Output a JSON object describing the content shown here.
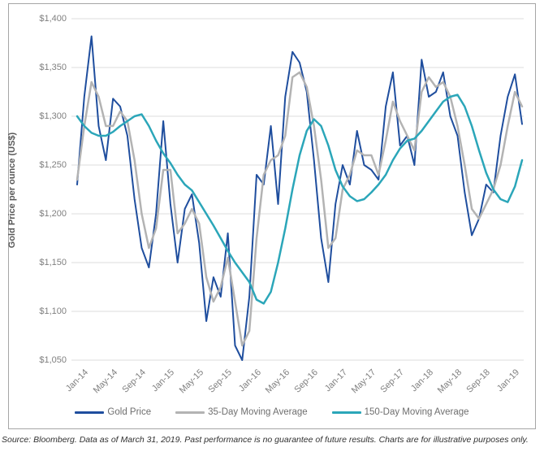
{
  "figure": {
    "source_text": "Source: Bloomberg. Data as of March 31, 2019. Past performance is no guarantee of future results. Charts are for illustrative purposes only."
  },
  "chart_data": {
    "type": "line",
    "title": "",
    "xlabel": "",
    "ylabel": "Gold Price per ounce (US$)",
    "ylim": [
      1050,
      1400
    ],
    "y_tick_step": 50,
    "y_tick_labels": [
      "$1,050",
      "$1,100",
      "$1,150",
      "$1,200",
      "$1,250",
      "$1,300",
      "$1,350",
      "$1,400"
    ],
    "x_tick_labels": [
      "Jan-14",
      "May-14",
      "Sep-14",
      "Jan-15",
      "May-15",
      "Sep-15",
      "Jan-16",
      "May-16",
      "Sep-16",
      "Jan-17",
      "May-17",
      "Sep-17",
      "Jan-18",
      "May-18",
      "Sep-18",
      "Jan-19"
    ],
    "x_start": "Jan-14",
    "x_end": "Mar-19",
    "x_frequency": "monthly",
    "x_tick_interval_months": 4,
    "grid": "horizontal",
    "legend_position": "bottom",
    "colors": {
      "grid": "#dcdcdc",
      "tick_text": "#7f7f7f",
      "axis_title_text": "#595959",
      "figure_border": "#a6a6a6"
    },
    "series": [
      {
        "name": "Gold Price",
        "color": "#1f4e9e",
        "stroke_width": 2,
        "values": [
          1230,
          1320,
          1382,
          1290,
          1255,
          1318,
          1310,
          1280,
          1215,
          1165,
          1145,
          1200,
          1295,
          1210,
          1150,
          1205,
          1220,
          1170,
          1090,
          1135,
          1115,
          1180,
          1065,
          1050,
          1115,
          1240,
          1230,
          1290,
          1210,
          1320,
          1366,
          1355,
          1325,
          1255,
          1175,
          1130,
          1210,
          1250,
          1230,
          1285,
          1250,
          1245,
          1235,
          1310,
          1345,
          1270,
          1280,
          1250,
          1358,
          1320,
          1325,
          1345,
          1300,
          1280,
          1222,
          1178,
          1195,
          1230,
          1222,
          1280,
          1320,
          1343,
          1292
        ]
      },
      {
        "name": "35-Day Moving Average",
        "color": "#b3b3b3",
        "stroke_width": 2.5,
        "values": [
          1235,
          1290,
          1335,
          1320,
          1290,
          1290,
          1305,
          1295,
          1255,
          1200,
          1165,
          1185,
          1245,
          1245,
          1180,
          1190,
          1205,
          1190,
          1135,
          1110,
          1125,
          1155,
          1110,
          1065,
          1080,
          1175,
          1240,
          1255,
          1260,
          1280,
          1340,
          1345,
          1330,
          1290,
          1235,
          1165,
          1175,
          1225,
          1240,
          1265,
          1260,
          1260,
          1240,
          1275,
          1315,
          1295,
          1280,
          1265,
          1325,
          1340,
          1330,
          1335,
          1320,
          1290,
          1250,
          1205,
          1195,
          1210,
          1225,
          1250,
          1290,
          1325,
          1310
        ]
      },
      {
        "name": "150-Day Moving Average",
        "color": "#2ba6b9",
        "stroke_width": 2.5,
        "values": [
          1300,
          1290,
          1283,
          1280,
          1280,
          1284,
          1290,
          1295,
          1300,
          1302,
          1290,
          1275,
          1262,
          1252,
          1240,
          1230,
          1224,
          1212,
          1200,
          1188,
          1175,
          1162,
          1150,
          1140,
          1130,
          1112,
          1108,
          1120,
          1150,
          1185,
          1225,
          1260,
          1285,
          1297,
          1290,
          1270,
          1245,
          1228,
          1218,
          1213,
          1215,
          1222,
          1230,
          1240,
          1255,
          1267,
          1275,
          1277,
          1285,
          1295,
          1305,
          1315,
          1320,
          1322,
          1310,
          1290,
          1265,
          1242,
          1225,
          1215,
          1212,
          1228,
          1255
        ]
      }
    ]
  }
}
